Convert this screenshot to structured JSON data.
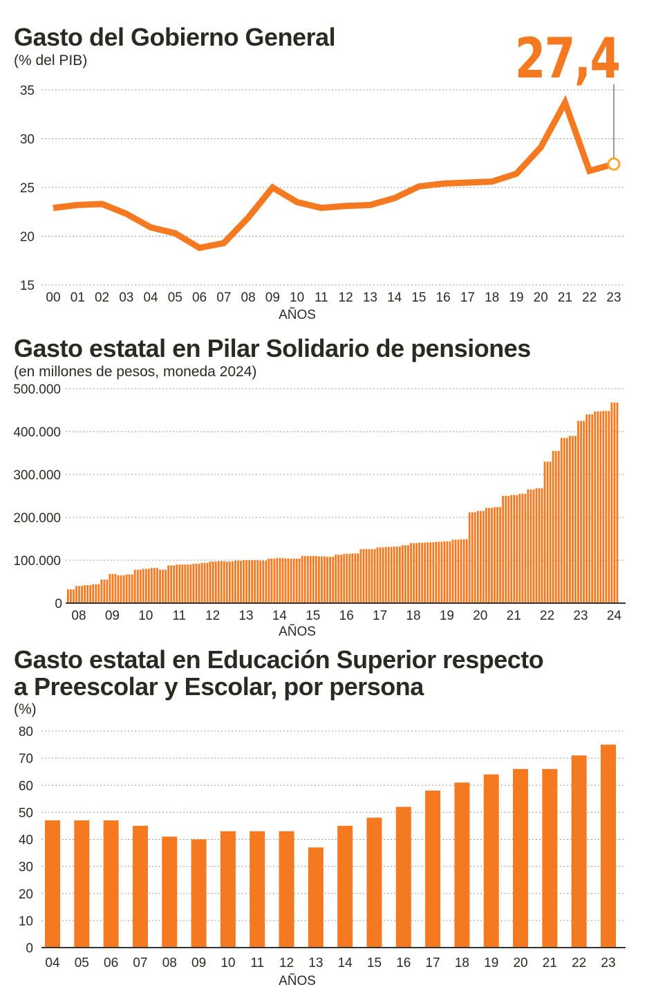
{
  "chart_data": [
    {
      "type": "line",
      "title": "Gasto del Gobierno General",
      "subtitle": "(% del PIB)",
      "xlabel": "AÑOS",
      "ylim": [
        15,
        35
      ],
      "yticks": [
        15,
        20,
        25,
        30,
        35
      ],
      "categories": [
        "00",
        "01",
        "02",
        "03",
        "04",
        "05",
        "06",
        "07",
        "08",
        "09",
        "10",
        "11",
        "12",
        "13",
        "14",
        "15",
        "16",
        "17",
        "18",
        "19",
        "20",
        "21",
        "22",
        "23"
      ],
      "values": [
        22.9,
        23.2,
        23.3,
        22.3,
        20.9,
        20.3,
        18.8,
        19.3,
        21.9,
        25.0,
        23.5,
        22.9,
        23.1,
        23.2,
        23.9,
        25.1,
        25.4,
        25.5,
        25.6,
        26.4,
        29.1,
        33.7,
        26.7,
        27.4
      ],
      "annotation": "27,4",
      "color": "#f47920"
    },
    {
      "type": "bar",
      "title": "Gasto estatal en Pilar Solidario de pensiones",
      "subtitle": "(en millones de pesos, moneda 2024)",
      "xlabel": "AÑOS",
      "ylim": [
        0,
        500000
      ],
      "yticks": [
        "0",
        "100.000",
        "200.000",
        "300.000",
        "400.000",
        "500.000"
      ],
      "categories": [
        "08",
        "09",
        "10",
        "11",
        "12",
        "13",
        "14",
        "15",
        "16",
        "17",
        "18",
        "19",
        "20",
        "21",
        "22",
        "23",
        "24"
      ],
      "values_quarterly_thousands": [
        32,
        40,
        42,
        44,
        55,
        68,
        65,
        67,
        78,
        80,
        82,
        78,
        88,
        90,
        90,
        92,
        94,
        97,
        98,
        97,
        99,
        100,
        100,
        99,
        104,
        105,
        104,
        104,
        110,
        110,
        109,
        108,
        113,
        115,
        116,
        126,
        126,
        130,
        131,
        132,
        135,
        140,
        141,
        142,
        143,
        144,
        148,
        149,
        212,
        215,
        222,
        224,
        250,
        252,
        255,
        265,
        268,
        330,
        355,
        385,
        390,
        425,
        440,
        447,
        448,
        468
      ],
      "color": "#f47920"
    },
    {
      "type": "bar",
      "title": "Gasto estatal en Educación Superior respecto a Preescolar y Escolar, por persona",
      "title_line1": "Gasto estatal en Educación Superior respecto",
      "title_line2": "a Preescolar y Escolar, por persona",
      "subtitle": "(%)",
      "xlabel": "AÑOS",
      "ylim": [
        0,
        80
      ],
      "yticks": [
        0,
        10,
        20,
        30,
        40,
        50,
        60,
        70,
        80
      ],
      "categories": [
        "04",
        "05",
        "06",
        "07",
        "08",
        "09",
        "10",
        "11",
        "12",
        "13",
        "14",
        "15",
        "16",
        "17",
        "18",
        "19",
        "20",
        "21",
        "22",
        "23"
      ],
      "values": [
        47,
        47,
        47,
        45,
        41,
        40,
        43,
        43,
        43,
        37,
        45,
        48,
        52,
        58,
        61,
        64,
        66,
        66,
        71,
        75
      ],
      "color": "#f47920"
    }
  ]
}
